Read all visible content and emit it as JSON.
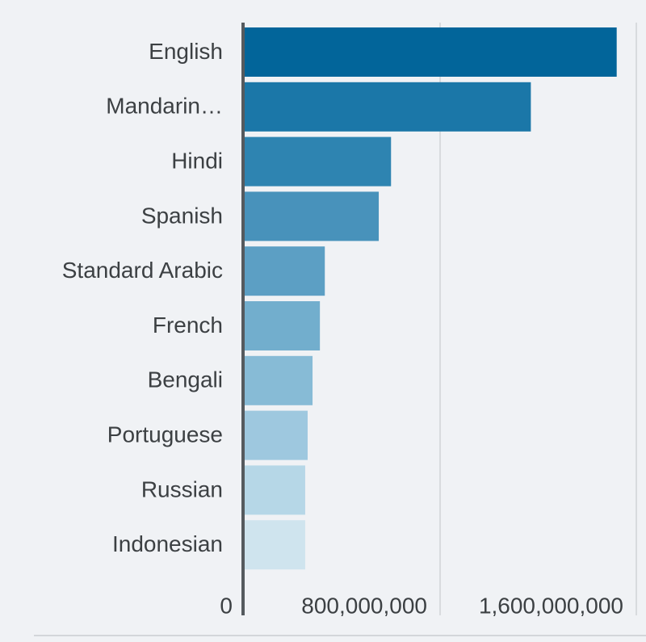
{
  "chart_data": {
    "type": "bar",
    "orientation": "horizontal",
    "categories": [
      "English",
      "Mandarin…",
      "Hindi",
      "Spanish",
      "Standard Arabic",
      "French",
      "Bengali",
      "Portuguese",
      "Russian",
      "Indonesian"
    ],
    "values": [
      1520000000,
      1170000000,
      600000000,
      550000000,
      330000000,
      310000000,
      280000000,
      260000000,
      250000000,
      250000000
    ],
    "xlim": [
      0,
      1600000000
    ],
    "x_ticks": [
      0,
      800000000,
      1600000000
    ],
    "x_tick_labels": [
      "0",
      "800,000,000",
      "1,600,000,000"
    ],
    "grid": true,
    "colors": [
      "#02659a",
      "#1b77a8",
      "#2e84b1",
      "#4892bb",
      "#5c9fc4",
      "#72aecd",
      "#87bbd6",
      "#9ec8df",
      "#b6d7e7",
      "#cfe4ee"
    ],
    "axis_color": "#555a5e",
    "grid_color": "#cfd3d7",
    "label_color": "#3c4043"
  }
}
